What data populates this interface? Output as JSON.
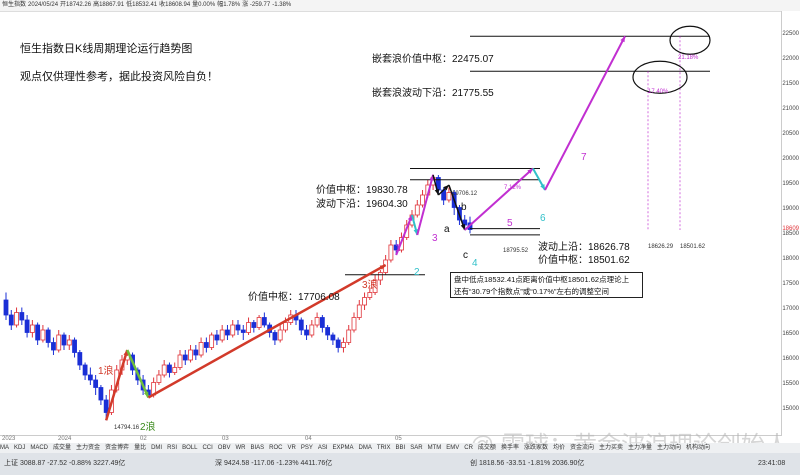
{
  "topbar": {
    "items": [
      "恒生指数",
      "2024/05/24",
      "开18742.26",
      "高18867.91",
      "低18532.41",
      "收18608.94",
      "量0.00%",
      "幅1.78%",
      "涨 -259.77",
      "-1.38%"
    ]
  },
  "titles": {
    "line1": "恒生指数日K线周期理论运行趋势图",
    "line2": "观点仅供理性参考，据此投资风险自负！"
  },
  "annotations": {
    "nested_value_center": "嵌套浪价值中枢：22475.07",
    "nested_wave_lower": "嵌套浪波动下沿：21775.55",
    "value_center_top": "价值中枢：19830.78",
    "wave_lower_top": "波动下沿：19604.30",
    "wave_upper_right": "波动上沿：18626.78",
    "value_center_right": "价值中枢：18501.62",
    "value_center_left": "价值中枢：17706.08",
    "price_19706": "19706.12",
    "price_18795": "18795.52",
    "price_18626": "18626.29",
    "price_18501": "18501.62",
    "low_price": "14794.16",
    "pct_2118": "21.18%",
    "pct_1740": "17.40%",
    "pct_712": "7.12%"
  },
  "note_box": {
    "line1": "盘中低点18532.41点距离价值中枢18501.62点理论上",
    "line2": "还有“30.79个指数点”或“0.17%”左右的调整空间"
  },
  "waves": {
    "w1_lang": "1浪",
    "w2_lang": "2浪",
    "w3_lang": "3浪",
    "w1": "1",
    "w2": "2",
    "w3": "3",
    "w4": "4",
    "w5": "5",
    "w6": "6",
    "w7": "7",
    "a": "a",
    "b": "b",
    "c": "c"
  },
  "colors": {
    "up": "#e0353b",
    "down": "#1a2fd6",
    "wave_red": "#d23a2a",
    "wave_green": "#6fbe3c",
    "wave_cyan": "#31c0c9",
    "wave_magenta": "#c12fd1",
    "black": "#111111"
  },
  "chart_data": {
    "type": "candlestick",
    "series_name": "恒生指数",
    "y_axis_ticks": [
      "22500",
      "22000",
      "21500",
      "21000",
      "20500",
      "20000",
      "19500",
      "19000",
      "18500",
      "18000",
      "17500",
      "17000",
      "16500",
      "16000",
      "15500",
      "15000"
    ],
    "y_axis_highlight": "18609",
    "x_axis_ticks": [
      "2023",
      "2024",
      "02",
      "03",
      "04",
      "05"
    ],
    "ylim": [
      14600,
      22800
    ],
    "candles": [
      {
        "o": 17200,
        "c": 16900,
        "h": 17350,
        "l": 16800
      },
      {
        "o": 16900,
        "c": 16700,
        "h": 17000,
        "l": 16600
      },
      {
        "o": 16700,
        "c": 16950,
        "h": 17050,
        "l": 16650
      },
      {
        "o": 16950,
        "c": 16800,
        "h": 17050,
        "l": 16700
      },
      {
        "o": 16800,
        "c": 16550,
        "h": 16900,
        "l": 16450
      },
      {
        "o": 16550,
        "c": 16700,
        "h": 16800,
        "l": 16450
      },
      {
        "o": 16700,
        "c": 16400,
        "h": 16750,
        "l": 16300
      },
      {
        "o": 16400,
        "c": 16600,
        "h": 16700,
        "l": 16350
      },
      {
        "o": 16600,
        "c": 16350,
        "h": 16650,
        "l": 16250
      },
      {
        "o": 16350,
        "c": 16200,
        "h": 16450,
        "l": 16100
      },
      {
        "o": 16200,
        "c": 16500,
        "h": 16600,
        "l": 16150
      },
      {
        "o": 16500,
        "c": 16300,
        "h": 16550,
        "l": 16200
      },
      {
        "o": 16300,
        "c": 16400,
        "h": 16500,
        "l": 16200
      },
      {
        "o": 16400,
        "c": 16150,
        "h": 16450,
        "l": 16050
      },
      {
        "o": 16150,
        "c": 15900,
        "h": 16200,
        "l": 15800
      },
      {
        "o": 15900,
        "c": 15700,
        "h": 15950,
        "l": 15600
      },
      {
        "o": 15700,
        "c": 15600,
        "h": 15850,
        "l": 15500
      },
      {
        "o": 15600,
        "c": 15450,
        "h": 15700,
        "l": 15300
      },
      {
        "o": 15450,
        "c": 15200,
        "h": 15500,
        "l": 15100
      },
      {
        "o": 15200,
        "c": 14950,
        "h": 15300,
        "l": 14794
      },
      {
        "o": 14950,
        "c": 15400,
        "h": 15500,
        "l": 14900
      },
      {
        "o": 15400,
        "c": 15800,
        "h": 15900,
        "l": 15350
      },
      {
        "o": 15800,
        "c": 16000,
        "h": 16100,
        "l": 15700
      },
      {
        "o": 16000,
        "c": 16100,
        "h": 16200,
        "l": 15900
      },
      {
        "o": 16100,
        "c": 15800,
        "h": 16150,
        "l": 15700
      },
      {
        "o": 15800,
        "c": 15600,
        "h": 15850,
        "l": 15500
      },
      {
        "o": 15600,
        "c": 15400,
        "h": 15700,
        "l": 15300
      },
      {
        "o": 15400,
        "c": 15300,
        "h": 15500,
        "l": 15250
      },
      {
        "o": 15300,
        "c": 15550,
        "h": 15650,
        "l": 15250
      },
      {
        "o": 15550,
        "c": 15700,
        "h": 15800,
        "l": 15500
      },
      {
        "o": 15700,
        "c": 15900,
        "h": 16000,
        "l": 15650
      },
      {
        "o": 15900,
        "c": 15750,
        "h": 15950,
        "l": 15650
      },
      {
        "o": 15750,
        "c": 15850,
        "h": 15950,
        "l": 15700
      },
      {
        "o": 15850,
        "c": 16100,
        "h": 16200,
        "l": 15800
      },
      {
        "o": 16100,
        "c": 16000,
        "h": 16200,
        "l": 15900
      },
      {
        "o": 16000,
        "c": 16200,
        "h": 16300,
        "l": 15950
      },
      {
        "o": 16200,
        "c": 16100,
        "h": 16300,
        "l": 16000
      },
      {
        "o": 16100,
        "c": 16350,
        "h": 16450,
        "l": 16050
      },
      {
        "o": 16350,
        "c": 16250,
        "h": 16450,
        "l": 16150
      },
      {
        "o": 16250,
        "c": 16500,
        "h": 16550,
        "l": 16200
      },
      {
        "o": 16500,
        "c": 16400,
        "h": 16600,
        "l": 16300
      },
      {
        "o": 16400,
        "c": 16600,
        "h": 16700,
        "l": 16350
      },
      {
        "o": 16600,
        "c": 16500,
        "h": 16700,
        "l": 16400
      },
      {
        "o": 16500,
        "c": 16700,
        "h": 16800,
        "l": 16450
      },
      {
        "o": 16700,
        "c": 16600,
        "h": 16800,
        "l": 16500
      },
      {
        "o": 16600,
        "c": 16550,
        "h": 16700,
        "l": 16400
      },
      {
        "o": 16550,
        "c": 16750,
        "h": 16850,
        "l": 16500
      },
      {
        "o": 16750,
        "c": 16650,
        "h": 16800,
        "l": 16550
      },
      {
        "o": 16650,
        "c": 16850,
        "h": 16900,
        "l": 16600
      },
      {
        "o": 16850,
        "c": 16700,
        "h": 16950,
        "l": 16650
      },
      {
        "o": 16700,
        "c": 16550,
        "h": 16750,
        "l": 16450
      },
      {
        "o": 16550,
        "c": 16400,
        "h": 16600,
        "l": 16300
      },
      {
        "o": 16400,
        "c": 16600,
        "h": 16700,
        "l": 16350
      },
      {
        "o": 16600,
        "c": 16750,
        "h": 16850,
        "l": 16550
      },
      {
        "o": 16750,
        "c": 16900,
        "h": 17000,
        "l": 16700
      },
      {
        "o": 16900,
        "c": 16800,
        "h": 17000,
        "l": 16700
      },
      {
        "o": 16800,
        "c": 16600,
        "h": 16850,
        "l": 16500
      },
      {
        "o": 16600,
        "c": 16500,
        "h": 16700,
        "l": 16400
      },
      {
        "o": 16500,
        "c": 16700,
        "h": 16800,
        "l": 16450
      },
      {
        "o": 16700,
        "c": 16850,
        "h": 16950,
        "l": 16650
      },
      {
        "o": 16850,
        "c": 16650,
        "h": 16900,
        "l": 16550
      },
      {
        "o": 16650,
        "c": 16500,
        "h": 16700,
        "l": 16400
      },
      {
        "o": 16500,
        "c": 16400,
        "h": 16550,
        "l": 16300
      },
      {
        "o": 16400,
        "c": 16250,
        "h": 16450,
        "l": 16150
      },
      {
        "o": 16250,
        "c": 16350,
        "h": 16450,
        "l": 16150
      },
      {
        "o": 16350,
        "c": 16600,
        "h": 16700,
        "l": 16300
      },
      {
        "o": 16600,
        "c": 16850,
        "h": 16950,
        "l": 16550
      },
      {
        "o": 16850,
        "c": 17100,
        "h": 17200,
        "l": 16800
      },
      {
        "o": 17100,
        "c": 17250,
        "h": 17350,
        "l": 17000
      },
      {
        "o": 17250,
        "c": 17350,
        "h": 17450,
        "l": 17200
      },
      {
        "o": 17350,
        "c": 17600,
        "h": 17700,
        "l": 17300
      },
      {
        "o": 17600,
        "c": 17750,
        "h": 17800,
        "l": 17500
      },
      {
        "o": 17750,
        "c": 18000,
        "h": 18100,
        "l": 17700
      },
      {
        "o": 18000,
        "c": 18300,
        "h": 18400,
        "l": 17950
      },
      {
        "o": 18300,
        "c": 18200,
        "h": 18400,
        "l": 18100
      },
      {
        "o": 18200,
        "c": 18450,
        "h": 18550,
        "l": 18150
      },
      {
        "o": 18450,
        "c": 18700,
        "h": 18800,
        "l": 18400
      },
      {
        "o": 18700,
        "c": 18900,
        "h": 19000,
        "l": 18650
      },
      {
        "o": 18900,
        "c": 19100,
        "h": 19200,
        "l": 18850
      },
      {
        "o": 19100,
        "c": 19300,
        "h": 19400,
        "l": 19050
      },
      {
        "o": 19300,
        "c": 19500,
        "h": 19600,
        "l": 19250
      },
      {
        "o": 19500,
        "c": 19650,
        "h": 19706,
        "l": 19400
      },
      {
        "o": 19650,
        "c": 19400,
        "h": 19700,
        "l": 19300
      },
      {
        "o": 19400,
        "c": 19200,
        "h": 19450,
        "l": 19100
      },
      {
        "o": 19200,
        "c": 19350,
        "h": 19450,
        "l": 19150
      },
      {
        "o": 19350,
        "c": 19050,
        "h": 19400,
        "l": 18900
      },
      {
        "o": 19050,
        "c": 18800,
        "h": 19100,
        "l": 18700
      },
      {
        "o": 18800,
        "c": 18700,
        "h": 18900,
        "l": 18600
      },
      {
        "o": 18742,
        "c": 18609,
        "h": 18868,
        "l": 18532
      }
    ]
  },
  "tabs": {
    "items": [
      "MA",
      "KDJ",
      "MACD",
      "成交量",
      "主力资金",
      "资金博弈",
      "量比",
      "DMI",
      "RSI",
      "BOLL",
      "CCI",
      "OBV",
      "WR",
      "BIAS",
      "ROC",
      "VR",
      "PSY",
      "ASI",
      "EXPMA",
      "DMA",
      "TRIX",
      "BBI",
      "SAR",
      "MTM",
      "EMV",
      "CR",
      "成交额",
      "换手率",
      "涨跌家数",
      "均价",
      "资金流向",
      "主力买卖",
      "主力净量",
      "主力动向",
      "机构动向"
    ]
  },
  "status": {
    "left": "上证 3088.87  -27.52  -0.88%  3227.49亿",
    "mid": "深 9424.58  -117.06  -1.23%  4411.76亿",
    "right": "创 1818.56  -33.51  -1.81%  2036.90亿",
    "time": "23:41:08"
  },
  "watermark": "@ 雪球：黄金波浪理论创始人"
}
